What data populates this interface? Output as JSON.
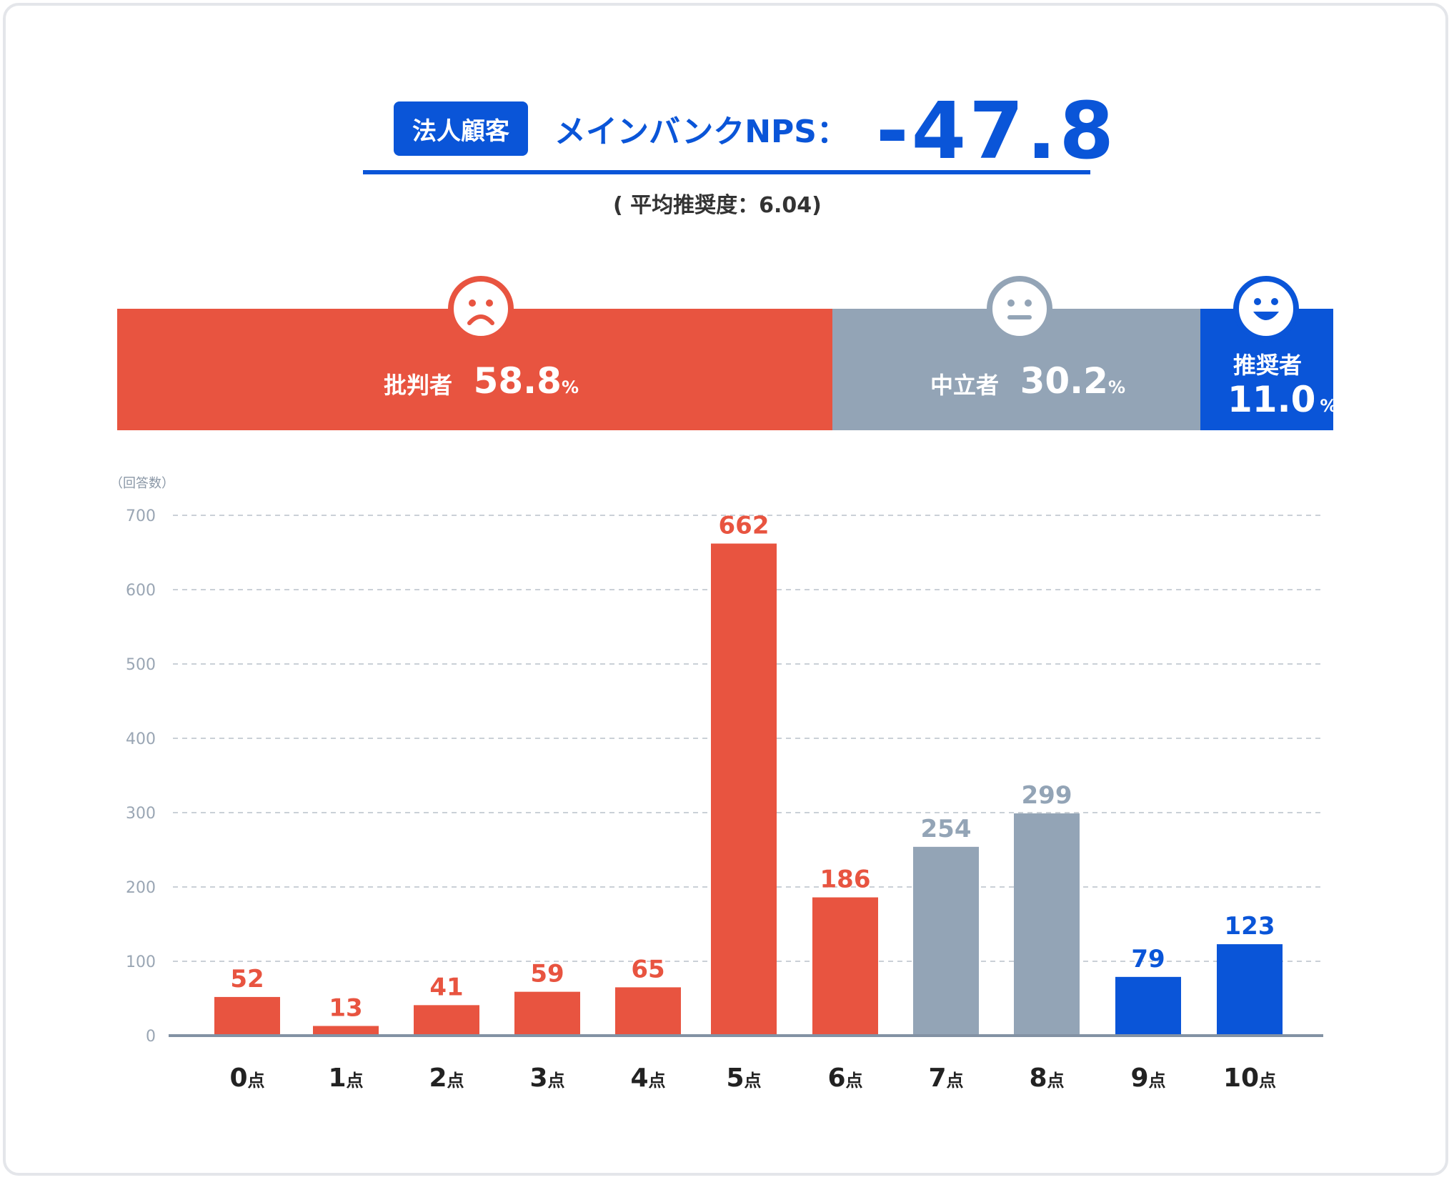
{
  "header": {
    "badge": "法人顧客",
    "nps_label": "メインバンクNPS：",
    "nps_value": "-47.8",
    "average": "( 平均推奨度：6.04)"
  },
  "segments": {
    "detractor": {
      "label": "批判者",
      "percent": "58.8",
      "unit": "%",
      "value": 58.8,
      "color": "#e85440",
      "icon": "sad-face-icon"
    },
    "passive": {
      "label": "中立者",
      "percent": "30.2",
      "unit": "%",
      "value": 30.2,
      "color": "#93a4b6",
      "icon": "neutral-face-icon"
    },
    "promoter": {
      "label": "推奨者",
      "percent": "11.0",
      "unit": "%",
      "value": 11.0,
      "color": "#0a55d8",
      "icon": "happy-face-icon"
    }
  },
  "chart_data": {
    "type": "bar",
    "ylabel": "（回答数）",
    "ylim": [
      0,
      700
    ],
    "yticks": [
      "0",
      "100",
      "200",
      "300",
      "400",
      "500",
      "600",
      "700"
    ],
    "grid": true,
    "categories": [
      "0",
      "1",
      "2",
      "3",
      "4",
      "5",
      "6",
      "7",
      "8",
      "9",
      "10"
    ],
    "category_suffix": "点",
    "values": [
      52,
      13,
      41,
      59,
      65,
      662,
      186,
      254,
      299,
      79,
      123
    ],
    "groups": [
      "detractor",
      "detractor",
      "detractor",
      "detractor",
      "detractor",
      "detractor",
      "detractor",
      "passive",
      "passive",
      "promoter",
      "promoter"
    ],
    "colors": {
      "detractor": "#e85440",
      "passive": "#93a4b6",
      "promoter": "#0a55d8"
    }
  }
}
